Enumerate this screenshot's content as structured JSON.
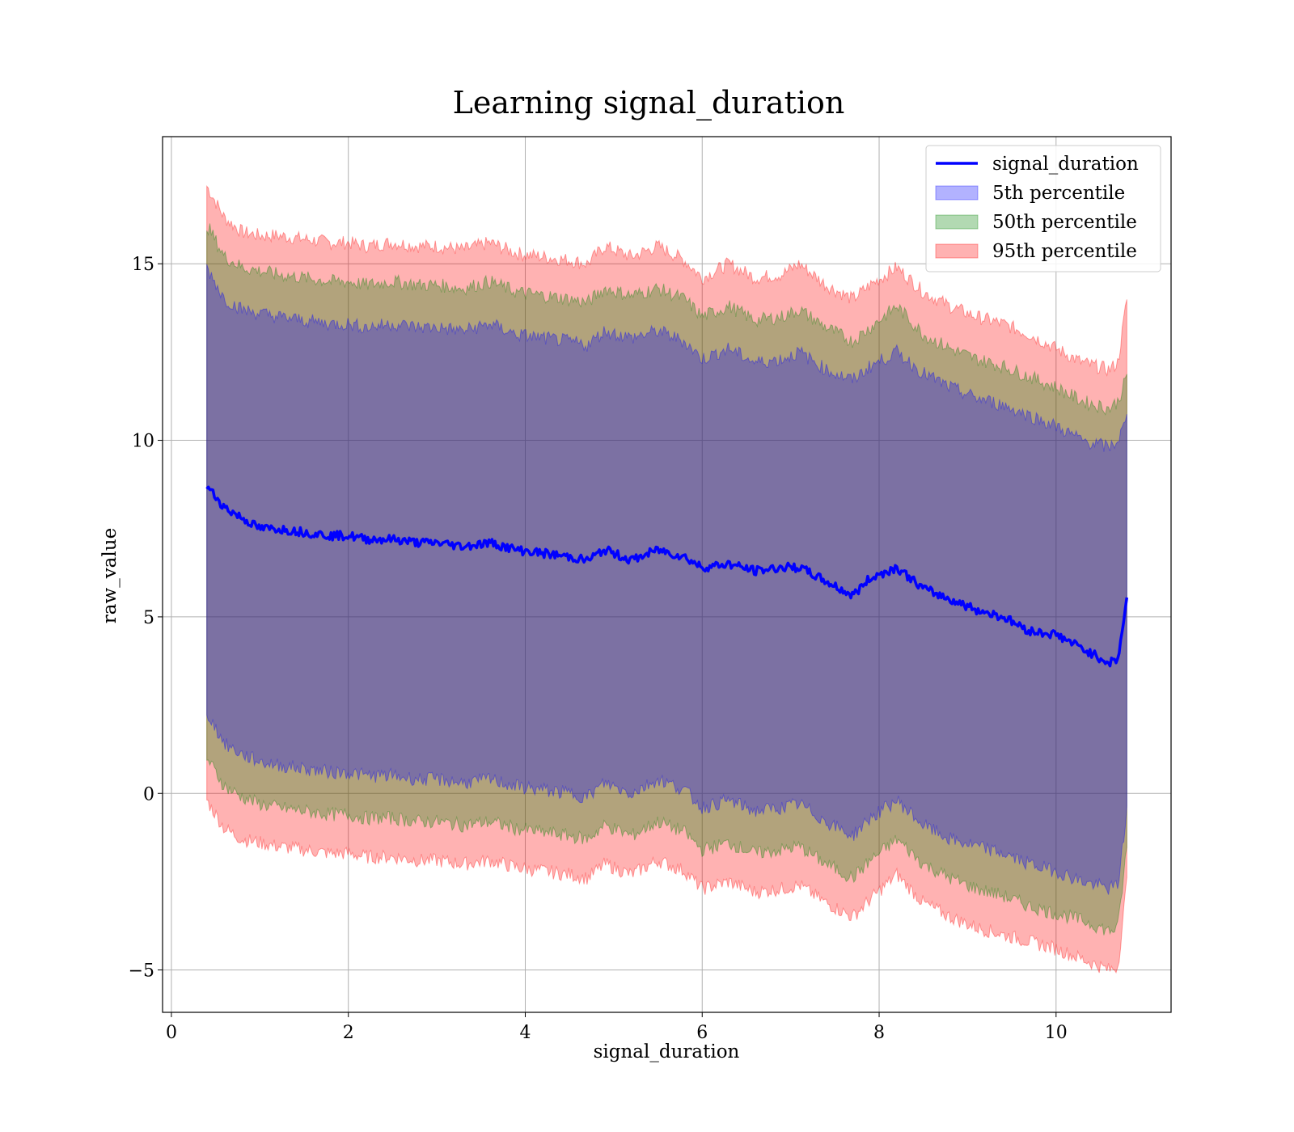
{
  "chart_data": {
    "type": "line",
    "title": "Learning signal_duration",
    "xlabel": "signal_duration",
    "ylabel": "raw_value",
    "xlim": [
      -0.1,
      11.3
    ],
    "ylim": [
      -6.2,
      18.6
    ],
    "xticks": [
      0,
      2,
      4,
      6,
      8,
      10
    ],
    "xtick_labels": [
      "0",
      "2",
      "4",
      "6",
      "8",
      "10"
    ],
    "yticks": [
      -5,
      0,
      5,
      10,
      15
    ],
    "ytick_labels": [
      "−5",
      "0",
      "5",
      "10",
      "15"
    ],
    "grid": true,
    "legend_position": "top-right",
    "x": [
      0.4,
      0.6,
      0.8,
      1.0,
      1.2,
      1.5,
      1.8,
      2.0,
      2.2,
      2.5,
      2.8,
      3.0,
      3.3,
      3.6,
      3.9,
      4.2,
      4.5,
      4.7,
      4.9,
      5.2,
      5.5,
      5.8,
      6.0,
      6.3,
      6.6,
      6.9,
      7.1,
      7.4,
      7.7,
      7.9,
      8.2,
      8.5,
      8.8,
      9.1,
      9.4,
      9.7,
      10.0,
      10.3,
      10.6,
      10.7,
      10.8
    ],
    "series": [
      {
        "name": "signal_duration",
        "type": "line",
        "color": "#0000ff",
        "values": [
          8.7,
          8.1,
          7.8,
          7.5,
          7.5,
          7.4,
          7.3,
          7.3,
          7.2,
          7.2,
          7.1,
          7.1,
          7.0,
          7.1,
          6.9,
          6.8,
          6.7,
          6.6,
          6.9,
          6.6,
          6.9,
          6.7,
          6.4,
          6.5,
          6.3,
          6.4,
          6.4,
          6.0,
          5.6,
          6.1,
          6.4,
          5.8,
          5.5,
          5.2,
          5.0,
          4.6,
          4.5,
          4.1,
          3.7,
          3.8,
          5.5
        ]
      },
      {
        "name": "5th percentile",
        "type": "band",
        "color": "#0000ff",
        "upper": [
          14.9,
          14.0,
          13.7,
          13.6,
          13.5,
          13.4,
          13.3,
          13.3,
          13.2,
          13.3,
          13.2,
          13.2,
          13.1,
          13.3,
          13.0,
          12.9,
          12.8,
          12.7,
          13.1,
          12.9,
          13.1,
          12.8,
          12.3,
          12.6,
          12.2,
          12.3,
          12.5,
          12.0,
          11.7,
          12.1,
          12.5,
          11.9,
          11.5,
          11.2,
          11.0,
          10.7,
          10.4,
          10.0,
          9.8,
          10.0,
          10.6
        ],
        "lower": [
          2.3,
          1.4,
          1.1,
          0.9,
          0.8,
          0.7,
          0.6,
          0.6,
          0.5,
          0.5,
          0.4,
          0.4,
          0.3,
          0.4,
          0.2,
          0.1,
          0.0,
          -0.1,
          0.3,
          0.0,
          0.4,
          0.1,
          -0.4,
          -0.2,
          -0.5,
          -0.4,
          -0.3,
          -0.8,
          -1.2,
          -0.7,
          -0.2,
          -0.9,
          -1.3,
          -1.5,
          -1.7,
          -2.0,
          -2.2,
          -2.5,
          -2.7,
          -2.6,
          -0.5
        ]
      },
      {
        "name": "50th percentile",
        "type": "band",
        "color": "#008000",
        "upper": [
          16.1,
          15.2,
          14.9,
          14.8,
          14.7,
          14.6,
          14.5,
          14.5,
          14.4,
          14.5,
          14.4,
          14.4,
          14.3,
          14.5,
          14.2,
          14.1,
          14.0,
          13.9,
          14.3,
          14.1,
          14.3,
          14.0,
          13.5,
          13.8,
          13.4,
          13.5,
          13.7,
          13.2,
          12.8,
          13.2,
          13.8,
          13.0,
          12.6,
          12.3,
          12.1,
          11.8,
          11.5,
          11.1,
          10.9,
          11.1,
          11.8
        ],
        "lower": [
          1.0,
          0.2,
          -0.1,
          -0.3,
          -0.4,
          -0.5,
          -0.6,
          -0.6,
          -0.7,
          -0.7,
          -0.8,
          -0.8,
          -0.9,
          -0.8,
          -1.0,
          -1.1,
          -1.2,
          -1.3,
          -0.9,
          -1.2,
          -0.8,
          -1.1,
          -1.6,
          -1.4,
          -1.7,
          -1.6,
          -1.5,
          -2.0,
          -2.4,
          -1.9,
          -1.3,
          -2.0,
          -2.4,
          -2.7,
          -2.9,
          -3.2,
          -3.4,
          -3.6,
          -3.9,
          -3.8,
          -1.5
        ]
      },
      {
        "name": "95th percentile",
        "type": "band",
        "color": "#ff0000",
        "upper": [
          17.2,
          16.3,
          15.9,
          15.8,
          15.8,
          15.7,
          15.6,
          15.6,
          15.5,
          15.6,
          15.5,
          15.5,
          15.4,
          15.6,
          15.3,
          15.2,
          15.1,
          15.0,
          15.5,
          15.2,
          15.5,
          15.1,
          14.6,
          15.0,
          14.6,
          14.7,
          15.0,
          14.4,
          14.0,
          14.4,
          14.9,
          14.2,
          13.8,
          13.5,
          13.3,
          13.0,
          12.6,
          12.2,
          12.0,
          12.2,
          14.0
        ],
        "lower": [
          -0.2,
          -1.0,
          -1.3,
          -1.4,
          -1.5,
          -1.6,
          -1.7,
          -1.7,
          -1.8,
          -1.8,
          -1.9,
          -1.9,
          -2.0,
          -1.9,
          -2.1,
          -2.2,
          -2.3,
          -2.4,
          -2.0,
          -2.3,
          -1.9,
          -2.2,
          -2.7,
          -2.5,
          -2.8,
          -2.7,
          -2.6,
          -3.1,
          -3.5,
          -3.0,
          -2.3,
          -3.1,
          -3.5,
          -3.8,
          -4.0,
          -4.2,
          -4.4,
          -4.7,
          -5.0,
          -4.9,
          -2.5
        ]
      }
    ]
  }
}
